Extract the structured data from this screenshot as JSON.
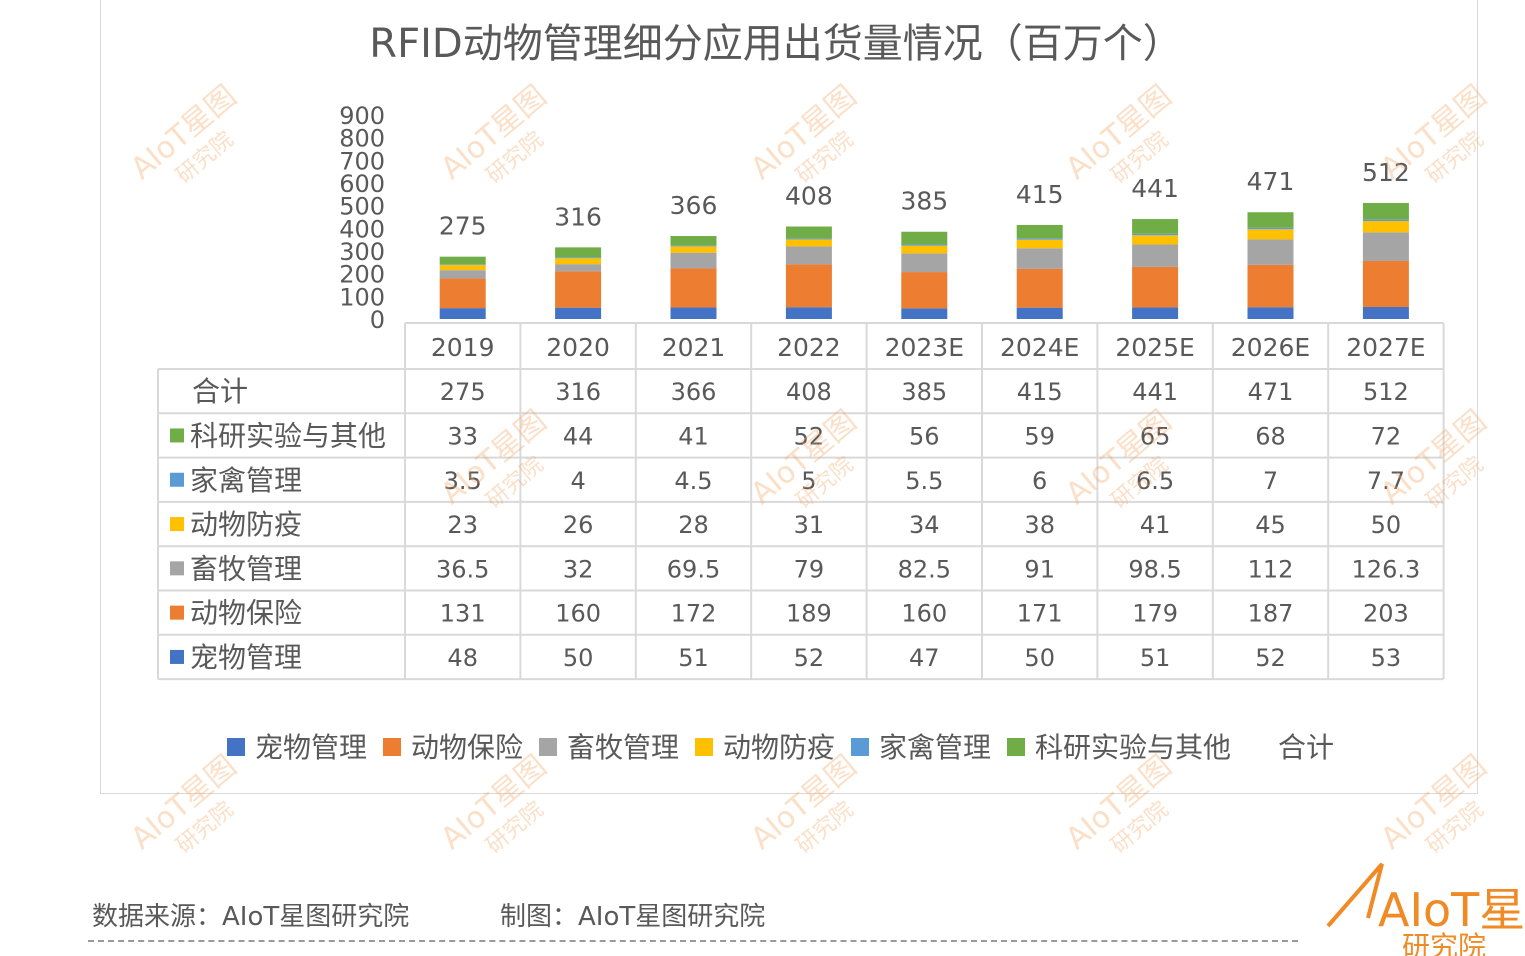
{
  "source": {
    "data_source": "数据来源：AIoT星图研究院",
    "made_by": "制图：AIoT星图研究院"
  },
  "watermark": {
    "line1": "AIoT星图",
    "line2": "研究院"
  },
  "brand_logo": {
    "text": "AIoT星图",
    "subtext": "研究院",
    "color": "#f08a24"
  },
  "chart_data": {
    "type": "bar",
    "stacked": true,
    "title": "RFID动物管理细分应用出货量情况（百万个）",
    "categories": [
      "2019",
      "2020",
      "2021",
      "2022",
      "2023E",
      "2024E",
      "2025E",
      "2026E",
      "2027E"
    ],
    "ylim": [
      0,
      900
    ],
    "yticks": [
      0,
      100,
      200,
      300,
      400,
      500,
      600,
      700,
      800,
      900
    ],
    "grid": false,
    "legend_position": "bottom",
    "series": [
      {
        "name": "宠物管理",
        "color": "#4472c4",
        "values": [
          48,
          50,
          51,
          52,
          47,
          50,
          51,
          52,
          53
        ]
      },
      {
        "name": "动物保险",
        "color": "#ed7d31",
        "values": [
          131,
          160,
          172,
          189,
          160,
          171,
          179,
          187,
          203
        ]
      },
      {
        "name": "畜牧管理",
        "color": "#a5a5a5",
        "values": [
          36.5,
          32,
          69.5,
          79,
          82.5,
          91,
          98.5,
          112,
          126.3
        ]
      },
      {
        "name": "动物防疫",
        "color": "#ffc000",
        "values": [
          23,
          26,
          28,
          31,
          34,
          38,
          41,
          45,
          50
        ]
      },
      {
        "name": "家禽管理",
        "color": "#5b9bd5",
        "values": [
          3.5,
          4,
          4.5,
          5,
          5.5,
          6,
          6.5,
          7,
          7.7
        ]
      },
      {
        "name": "科研实验与其他",
        "color": "#70ad47",
        "values": [
          33,
          44,
          41,
          52,
          56,
          59,
          65,
          68,
          72
        ]
      }
    ],
    "total": {
      "name": "合计",
      "values": [
        275,
        316,
        366,
        408,
        385,
        415,
        441,
        471,
        512
      ]
    },
    "table_row_order": [
      "合计",
      "科研实验与其他",
      "家禽管理",
      "动物防疫",
      "畜牧管理",
      "动物保险",
      "宠物管理"
    ],
    "table_display": {
      "合计": [
        "275",
        "316",
        "366",
        "408",
        "385",
        "415",
        "441",
        "471",
        "512"
      ],
      "科研实验与其他": [
        "33",
        "44",
        "41",
        "52",
        "56",
        "59",
        "65",
        "68",
        "72"
      ],
      "家禽管理": [
        "3.5",
        "4",
        "4.5",
        "5",
        "5.5",
        "6",
        "6.5",
        "7",
        "7.7"
      ],
      "动物防疫": [
        "23",
        "26",
        "28",
        "31",
        "34",
        "38",
        "41",
        "45",
        "50"
      ],
      "畜牧管理": [
        "36.5",
        "32",
        "69.5",
        "79",
        "82.5",
        "91",
        "98.5",
        "112",
        "126.3"
      ],
      "动物保险": [
        "131",
        "160",
        "172",
        "189",
        "160",
        "171",
        "179",
        "187",
        "203"
      ],
      "宠物管理": [
        "48",
        "50",
        "51",
        "52",
        "47",
        "50",
        "51",
        "52",
        "53"
      ]
    }
  }
}
